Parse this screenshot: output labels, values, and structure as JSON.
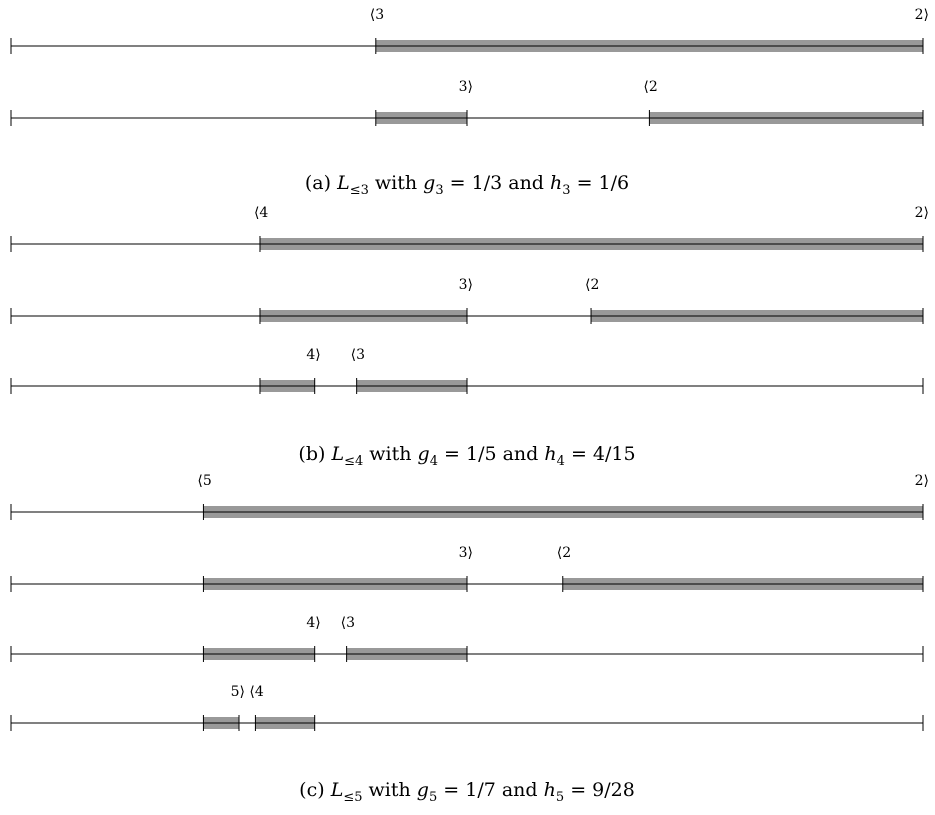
{
  "scale": {
    "min": 0,
    "max": 1
  },
  "panels": [
    {
      "id": "a",
      "caption": {
        "prefix": "(a) ",
        "var": "L",
        "sub": "≤3",
        "mid": " with ",
        "g_var": "g",
        "g_sub": "3",
        "g_val": " = 1/3",
        "and": " and ",
        "h_var": "h",
        "h_sub": "3",
        "h_val": " = 1/6"
      },
      "rows": [
        {
          "labels": [
            {
              "text": "⟨3",
              "at": 0.4
            },
            {
              "text": "2⟩",
              "at": 1.0
            }
          ],
          "bars": [
            [
              0.4,
              1.0
            ]
          ]
        },
        {
          "labels": [
            {
              "text": "3⟩",
              "at": 0.5
            },
            {
              "text": "⟨2",
              "at": 0.7
            }
          ],
          "bars": [
            [
              0.4,
              0.5
            ],
            [
              0.7,
              1.0
            ]
          ]
        }
      ]
    },
    {
      "id": "b",
      "caption": {
        "prefix": "(b) ",
        "var": "L",
        "sub": "≤4",
        "mid": " with ",
        "g_var": "g",
        "g_sub": "4",
        "g_val": " = 1/5",
        "and": " and ",
        "h_var": "h",
        "h_sub": "4",
        "h_val": " = 4/15"
      },
      "rows": [
        {
          "labels": [
            {
              "text": "⟨4",
              "at": 0.273
            },
            {
              "text": "2⟩",
              "at": 1.0
            }
          ],
          "bars": [
            [
              0.273,
              1.0
            ]
          ]
        },
        {
          "labels": [
            {
              "text": "3⟩",
              "at": 0.5
            },
            {
              "text": "⟨2",
              "at": 0.636
            }
          ],
          "bars": [
            [
              0.273,
              0.5
            ],
            [
              0.636,
              1.0
            ]
          ]
        },
        {
          "labels": [
            {
              "text": "4⟩",
              "at": 0.333
            },
            {
              "text": "⟨3",
              "at": 0.379
            }
          ],
          "bars": [
            [
              0.273,
              0.333
            ],
            [
              0.379,
              0.5
            ]
          ]
        }
      ]
    },
    {
      "id": "c",
      "caption": {
        "prefix": "(c) ",
        "var": "L",
        "sub": "≤5",
        "mid": " with ",
        "g_var": "g",
        "g_sub": "5",
        "g_val": " = 1/7",
        "and": " and ",
        "h_var": "h",
        "h_sub": "5",
        "h_val": " = 9/28"
      },
      "rows": [
        {
          "labels": [
            {
              "text": "⟨5",
              "at": 0.211
            },
            {
              "text": "2⟩",
              "at": 1.0
            }
          ],
          "bars": [
            [
              0.211,
              1.0
            ]
          ]
        },
        {
          "labels": [
            {
              "text": "3⟩",
              "at": 0.5
            },
            {
              "text": "⟨2",
              "at": 0.605
            }
          ],
          "bars": [
            [
              0.211,
              0.5
            ],
            [
              0.605,
              1.0
            ]
          ]
        },
        {
          "labels": [
            {
              "text": "4⟩",
              "at": 0.333
            },
            {
              "text": "⟨3",
              "at": 0.368
            }
          ],
          "bars": [
            [
              0.211,
              0.333
            ],
            [
              0.368,
              0.5
            ]
          ]
        },
        {
          "labels": [
            {
              "text": "5⟩",
              "at": 0.25
            },
            {
              "text": "⟨4",
              "at": 0.268
            }
          ],
          "bars": [
            [
              0.211,
              0.25
            ],
            [
              0.268,
              0.333
            ]
          ]
        }
      ]
    }
  ]
}
